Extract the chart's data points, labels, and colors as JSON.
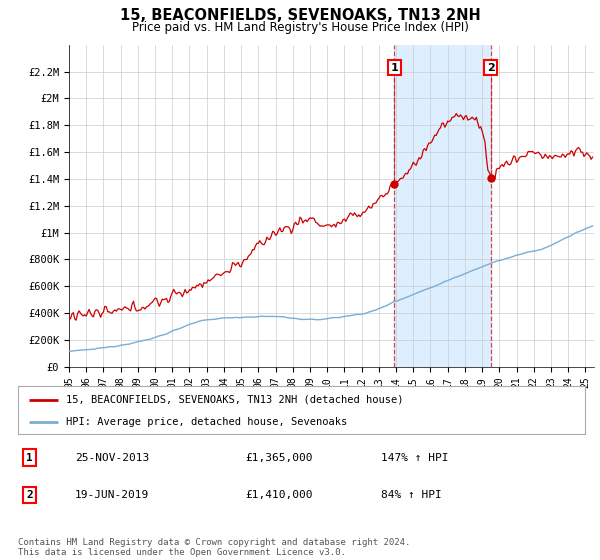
{
  "title": "15, BEACONFIELDS, SEVENOAKS, TN13 2NH",
  "subtitle": "Price paid vs. HM Land Registry's House Price Index (HPI)",
  "ylim": [
    0,
    2400000
  ],
  "yticks": [
    0,
    200000,
    400000,
    600000,
    800000,
    1000000,
    1200000,
    1400000,
    1600000,
    1800000,
    2000000,
    2200000
  ],
  "ytick_labels": [
    "£0",
    "£200K",
    "£400K",
    "£600K",
    "£800K",
    "£1M",
    "£1.2M",
    "£1.4M",
    "£1.6M",
    "£1.8M",
    "£2M",
    "£2.2M"
  ],
  "hpi_color": "#7aaed4",
  "price_color": "#cc0000",
  "marker1_year": 2013.9,
  "marker2_year": 2019.5,
  "marker1_price": 1365000,
  "marker2_price": 1410000,
  "legend_house": "15, BEACONFIELDS, SEVENOAKS, TN13 2NH (detached house)",
  "legend_hpi": "HPI: Average price, detached house, Sevenoaks",
  "table_row1_label": "1",
  "table_row1_date": "25-NOV-2013",
  "table_row1_price": "£1,365,000",
  "table_row1_hpi": "147% ↑ HPI",
  "table_row2_label": "2",
  "table_row2_date": "19-JUN-2019",
  "table_row2_price": "£1,410,000",
  "table_row2_hpi": "84% ↑ HPI",
  "footer": "Contains HM Land Registry data © Crown copyright and database right 2024.\nThis data is licensed under the Open Government Licence v3.0.",
  "background_color": "#ffffff",
  "grid_color": "#cccccc",
  "shaded_color": "#ddeeff"
}
